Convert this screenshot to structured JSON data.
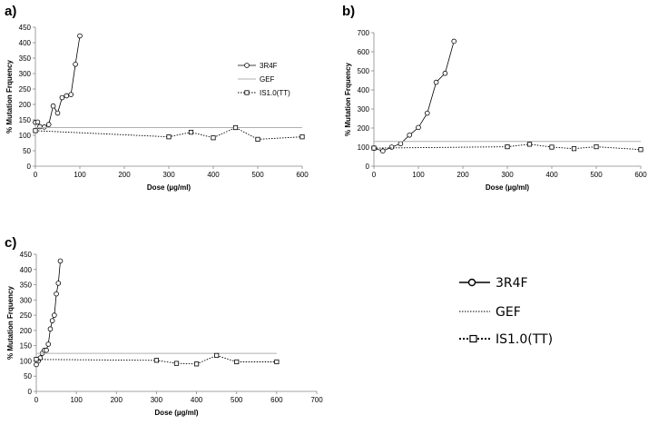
{
  "chart_data": [
    {
      "panel_label": "a)",
      "type": "line",
      "xlabel": "Dose (µg/ml)",
      "ylabel": "% Mutation Frquency",
      "xlim": [
        0,
        600
      ],
      "ylim": [
        0,
        450
      ],
      "xticks": [
        0,
        100,
        200,
        300,
        400,
        500,
        600
      ],
      "yticks": [
        0,
        50,
        100,
        150,
        200,
        250,
        300,
        350,
        400,
        450
      ],
      "legend": [
        "3R4F",
        "GEF",
        "IS1.0(TT)"
      ],
      "series": [
        {
          "name": "3R4F",
          "style": "solid-circle",
          "x": [
            0,
            5,
            10,
            20,
            30,
            40,
            50,
            60,
            70,
            80,
            90,
            100
          ],
          "y": [
            142,
            143,
            128,
            127,
            135,
            195,
            172,
            222,
            228,
            232,
            330,
            422
          ]
        },
        {
          "name": "GEF",
          "style": "gray-line",
          "x": [
            0,
            600
          ],
          "y": [
            125,
            125
          ]
        },
        {
          "name": "IS1.0(TT)",
          "style": "dotted-square",
          "x": [
            0,
            300,
            350,
            400,
            450,
            500,
            600
          ],
          "y": [
            115,
            95,
            110,
            92,
            125,
            87,
            95
          ]
        }
      ]
    },
    {
      "panel_label": "b)",
      "type": "line",
      "xlabel": "Dose (µg/ml)",
      "ylabel": "% Mutation Frquency",
      "xlim": [
        0,
        600
      ],
      "ylim": [
        0,
        700
      ],
      "xticks": [
        0,
        100,
        200,
        300,
        400,
        500,
        600
      ],
      "yticks": [
        0,
        100,
        200,
        300,
        400,
        500,
        600,
        700
      ],
      "series": [
        {
          "name": "3R4F",
          "style": "solid-circle",
          "x": [
            0,
            20,
            40,
            60,
            80,
            100,
            120,
            140,
            160,
            180
          ],
          "y": [
            95,
            80,
            100,
            118,
            163,
            203,
            278,
            440,
            487,
            655
          ]
        },
        {
          "name": "GEF",
          "style": "gray-line",
          "x": [
            0,
            600
          ],
          "y": [
            130,
            130
          ]
        },
        {
          "name": "IS1.0(TT)",
          "style": "dotted-square",
          "x": [
            0,
            300,
            350,
            400,
            450,
            500,
            600
          ],
          "y": [
            95,
            102,
            115,
            100,
            92,
            102,
            87
          ]
        }
      ]
    },
    {
      "panel_label": "c)",
      "type": "line",
      "xlabel": "Dose (µg/ml)",
      "ylabel": "% Mutation Frquency",
      "xlim": [
        0,
        700
      ],
      "ylim": [
        0,
        450
      ],
      "xticks": [
        0,
        100,
        200,
        300,
        400,
        500,
        600,
        700
      ],
      "yticks": [
        0,
        50,
        100,
        150,
        200,
        250,
        300,
        350,
        400,
        450
      ],
      "series": [
        {
          "name": "3R4F",
          "style": "solid-circle",
          "x": [
            0,
            5,
            10,
            15,
            20,
            25,
            30,
            35,
            40,
            45,
            50,
            55,
            60
          ],
          "y": [
            88,
            100,
            110,
            125,
            135,
            135,
            155,
            205,
            232,
            250,
            320,
            355,
            428
          ]
        },
        {
          "name": "GEF",
          "style": "gray-line",
          "x": [
            0,
            600
          ],
          "y": [
            125,
            125
          ]
        },
        {
          "name": "IS1.0(TT)",
          "style": "dotted-square",
          "x": [
            0,
            300,
            350,
            400,
            450,
            500,
            600
          ],
          "y": [
            105,
            102,
            92,
            90,
            118,
            97,
            97
          ]
        }
      ]
    }
  ],
  "bottom_legend": [
    "3R4F",
    "GEF",
    "IS1.0(TT)"
  ]
}
